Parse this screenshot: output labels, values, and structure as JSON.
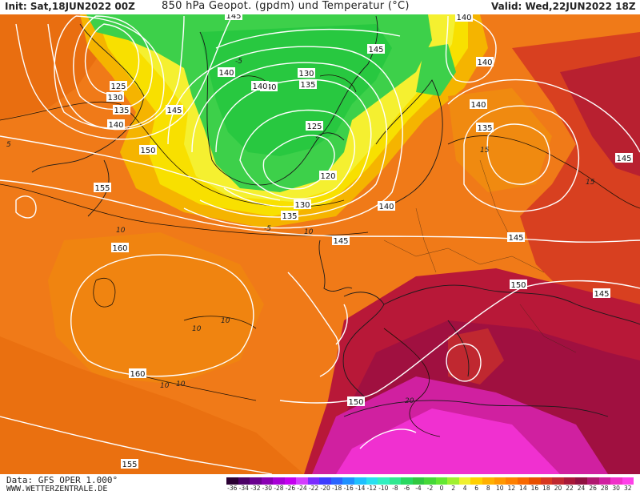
{
  "header": {
    "init": "Init: Sat,18JUN2022 00Z",
    "title": "850 hPa Geopot. (gpdm) und Temperatur (°C)",
    "valid": "Valid: Wed,22JUN2022 18Z"
  },
  "footer": {
    "source": "Data: GFS OPER 1.000°",
    "site": "WWW.WETTERZENTRALE.DE"
  },
  "colorbar": {
    "labels": [
      "-36",
      "-34",
      "-32",
      "-30",
      "-28",
      "-26",
      "-24",
      "-22",
      "-20",
      "-18",
      "-16",
      "-14",
      "-12",
      "-10",
      "-8",
      "-6",
      "-4",
      "-2",
      "0",
      "2",
      "4",
      "6",
      "8",
      "10",
      "12",
      "14",
      "16",
      "18",
      "20",
      "22",
      "24",
      "26",
      "28",
      "30",
      "32"
    ],
    "colors": [
      "#2a0033",
      "#4b0066",
      "#6a008f",
      "#8a00b3",
      "#a800d6",
      "#c400f0",
      "#d43dff",
      "#7a2cff",
      "#3d3dff",
      "#2a64ff",
      "#1e90ff",
      "#1ec0ff",
      "#28e0f0",
      "#30f0c0",
      "#30e890",
      "#28d860",
      "#30c840",
      "#46d838",
      "#64e832",
      "#a0f030",
      "#f0f030",
      "#ffd000",
      "#ffb000",
      "#ff9800",
      "#ff8000",
      "#f86800",
      "#e85000",
      "#d83820",
      "#c02830",
      "#a81838",
      "#901040",
      "#b01870",
      "#d020a0",
      "#f030c8",
      "#ff40e8"
    ]
  },
  "geopotential_labels": [
    "145",
    "140",
    "145",
    "140",
    "125",
    "130",
    "135",
    "140",
    "145",
    "140",
    "140",
    "135",
    "130",
    "140",
    "135",
    "125",
    "120",
    "130",
    "135",
    "150",
    "155",
    "160",
    "160",
    "145",
    "140",
    "145",
    "150",
    "145",
    "150",
    "155",
    "140",
    "145"
  ],
  "temperature_labels": [
    "5",
    "10",
    "-5",
    "15",
    "10",
    "10",
    "10",
    "15",
    "10",
    "10",
    "20",
    "-5"
  ]
}
